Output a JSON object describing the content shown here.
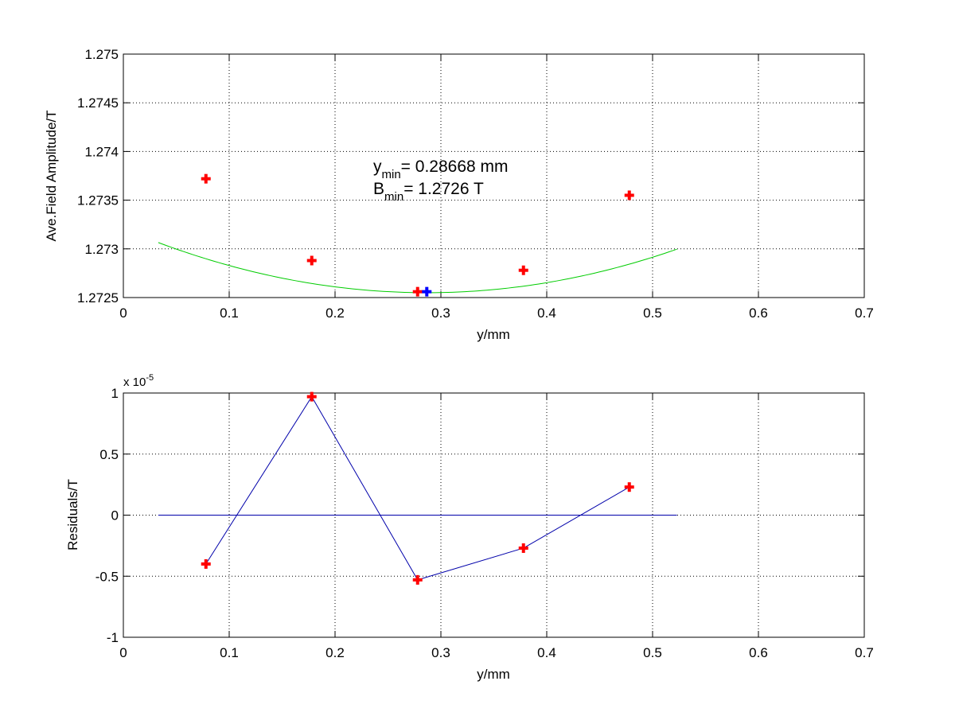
{
  "chart_data": [
    {
      "type": "scatter",
      "xlabel": "y/mm",
      "ylabel": "Ave.Field Amplitude/T",
      "xlim": [
        0,
        0.7
      ],
      "ylim": [
        1.2725,
        1.275
      ],
      "x_ticks": [
        "0",
        "0.1",
        "0.2",
        "0.3",
        "0.4",
        "0.5",
        "0.6",
        "0.7"
      ],
      "y_ticks": [
        "1.2725",
        "1.273",
        "1.2735",
        "1.274",
        "1.2745",
        "1.275"
      ],
      "grid": true,
      "series": [
        {
          "kind": "markers",
          "color": "#ff0000",
          "points": [
            [
              0.078,
              1.27372
            ],
            [
              0.178,
              1.27288
            ],
            [
              0.278,
              1.27256
            ],
            [
              0.378,
              1.27278
            ],
            [
              0.478,
              1.27355
            ]
          ]
        },
        {
          "kind": "fit-curve",
          "color": "#00cc00",
          "quadratic": {
            "a": 0.008,
            "vertex_x": 0.28668,
            "vertex_y": 1.27255
          },
          "x_range": [
            0.033,
            0.523
          ]
        },
        {
          "kind": "minimum-marker",
          "color": "#0000ff",
          "points": [
            [
              0.28668,
              1.27256
            ]
          ]
        }
      ],
      "annotation": {
        "line1": {
          "main": "y",
          "sub": "min",
          "rest": "= 0.28668 mm"
        },
        "line2": {
          "main": "B",
          "sub": "min",
          "rest": "= 1.2726 T"
        }
      }
    },
    {
      "type": "line",
      "xlabel": "y/mm",
      "ylabel": "Residuals/T",
      "xlim": [
        0,
        0.7
      ],
      "ylim": [
        -1,
        1
      ],
      "x_ticks": [
        "0",
        "0.1",
        "0.2",
        "0.3",
        "0.4",
        "0.5",
        "0.6",
        "0.7"
      ],
      "y_ticks": [
        "-1",
        "-0.5",
        "0",
        "0.5",
        "1"
      ],
      "scale_label": {
        "main": "x 10",
        "exp": "-5"
      },
      "grid": true,
      "series": [
        {
          "kind": "line-with-markers",
          "color": "#0000aa",
          "marker_color": "#ff0000",
          "points": [
            [
              0.078,
              -0.4
            ],
            [
              0.178,
              0.97
            ],
            [
              0.278,
              -0.53
            ],
            [
              0.378,
              -0.27
            ],
            [
              0.478,
              0.23
            ]
          ]
        },
        {
          "kind": "zero-line",
          "color": "#0000aa",
          "points": [
            [
              0.033,
              0
            ],
            [
              0.523,
              0
            ]
          ]
        }
      ]
    }
  ]
}
